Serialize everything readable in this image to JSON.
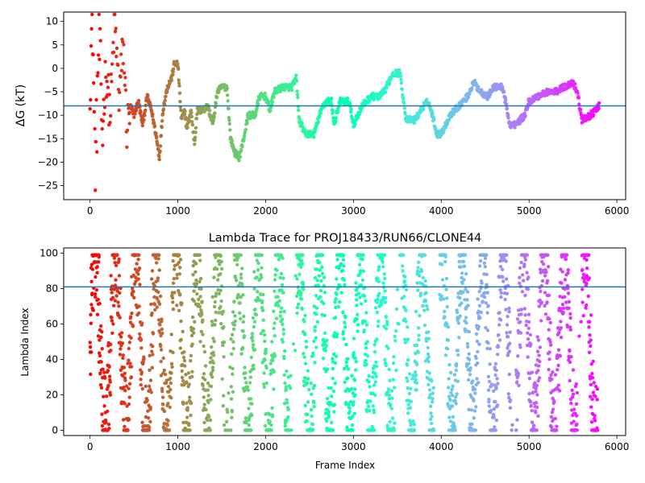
{
  "chart_data": [
    {
      "type": "scatter",
      "title": "",
      "xlabel": "",
      "ylabel": "ΔG (kT)",
      "xlim": [
        -300,
        6100
      ],
      "ylim": [
        -28,
        12
      ],
      "xticks": [
        0,
        1000,
        2000,
        3000,
        4000,
        5000,
        6000
      ],
      "xtick_labels": [
        "0",
        "1000",
        "2000",
        "3000",
        "4000",
        "5000",
        "6000"
      ],
      "yticks": [
        10,
        5,
        0,
        -5,
        -10,
        -15,
        -20,
        -25
      ],
      "ytick_labels": [
        "10",
        "5",
        "0",
        "−5",
        "−10",
        "−15",
        "−20",
        "−25"
      ],
      "hline": -8,
      "hline_color": "#1f77b4",
      "colormap": "rainbow (red → violet with increasing frame index)",
      "grid": false,
      "anchors": [
        [
          0,
          0
        ],
        [
          30,
          10
        ],
        [
          60,
          -25
        ],
        [
          100,
          8
        ],
        [
          140,
          -14
        ],
        [
          180,
          0
        ],
        [
          230,
          -10
        ],
        [
          280,
          11
        ],
        [
          330,
          -6
        ],
        [
          380,
          5
        ],
        [
          420,
          -13
        ],
        [
          460,
          -8
        ],
        [
          500,
          -10
        ],
        [
          550,
          -7
        ],
        [
          600,
          -12
        ],
        [
          650,
          -6
        ],
        [
          700,
          -9
        ],
        [
          750,
          -14
        ],
        [
          790,
          -19
        ],
        [
          830,
          -9
        ],
        [
          880,
          -4
        ],
        [
          930,
          -2
        ],
        [
          960,
          1
        ],
        [
          1000,
          1
        ],
        [
          1040,
          -11
        ],
        [
          1080,
          -9
        ],
        [
          1100,
          -13
        ],
        [
          1150,
          -9
        ],
        [
          1190,
          -16
        ],
        [
          1220,
          -9
        ],
        [
          1280,
          -9
        ],
        [
          1340,
          -8
        ],
        [
          1400,
          -12
        ],
        [
          1450,
          -5
        ],
        [
          1500,
          -4
        ],
        [
          1560,
          -4
        ],
        [
          1600,
          -15
        ],
        [
          1650,
          -18
        ],
        [
          1700,
          -19
        ],
        [
          1750,
          -15
        ],
        [
          1800,
          -10
        ],
        [
          1880,
          -10
        ],
        [
          1930,
          -6
        ],
        [
          2000,
          -6
        ],
        [
          2050,
          -9
        ],
        [
          2100,
          -5
        ],
        [
          2200,
          -4
        ],
        [
          2300,
          -4
        ],
        [
          2350,
          -2
        ],
        [
          2380,
          -11
        ],
        [
          2450,
          -14
        ],
        [
          2550,
          -14
        ],
        [
          2650,
          -8
        ],
        [
          2700,
          -7
        ],
        [
          2750,
          -7
        ],
        [
          2780,
          -12
        ],
        [
          2850,
          -7
        ],
        [
          2950,
          -7
        ],
        [
          3000,
          -12
        ],
        [
          3100,
          -8
        ],
        [
          3200,
          -6
        ],
        [
          3300,
          -6
        ],
        [
          3350,
          -5
        ],
        [
          3450,
          -1
        ],
        [
          3530,
          -1
        ],
        [
          3600,
          -11
        ],
        [
          3700,
          -11
        ],
        [
          3800,
          -8
        ],
        [
          3850,
          -7
        ],
        [
          3900,
          -10
        ],
        [
          3950,
          -14
        ],
        [
          4000,
          -14
        ],
        [
          4100,
          -10
        ],
        [
          4200,
          -8
        ],
        [
          4300,
          -6
        ],
        [
          4370,
          -3
        ],
        [
          4450,
          -5
        ],
        [
          4530,
          -6
        ],
        [
          4600,
          -4
        ],
        [
          4700,
          -4
        ],
        [
          4780,
          -12
        ],
        [
          4850,
          -12
        ],
        [
          4900,
          -11
        ],
        [
          4950,
          -10
        ],
        [
          5000,
          -7
        ],
        [
          5100,
          -6
        ],
        [
          5200,
          -5
        ],
        [
          5300,
          -5
        ],
        [
          5400,
          -4
        ],
        [
          5500,
          -3
        ],
        [
          5550,
          -5
        ],
        [
          5600,
          -11
        ],
        [
          5700,
          -10
        ],
        [
          5760,
          -9
        ],
        [
          5800,
          -8
        ]
      ]
    },
    {
      "type": "scatter",
      "title": "Lambda Trace for PROJ18433/RUN66/CLONE44",
      "xlabel": "Frame Index",
      "ylabel": "Lambda Index",
      "xlim": [
        -300,
        6100
      ],
      "ylim": [
        -3,
        103
      ],
      "xticks": [
        0,
        1000,
        2000,
        3000,
        4000,
        5000,
        6000
      ],
      "xtick_labels": [
        "0",
        "1000",
        "2000",
        "3000",
        "4000",
        "5000",
        "6000"
      ],
      "yticks": [
        0,
        20,
        40,
        60,
        80,
        100
      ],
      "ytick_labels": [
        "0",
        "20",
        "40",
        "60",
        "80",
        "100"
      ],
      "hline": 81,
      "hline_color": "#1f77b4",
      "colormap": "rainbow (red → violet with increasing frame index)",
      "grid": false,
      "lambda_range": [
        0,
        99
      ],
      "gap_regions": [
        [
          1530,
          1600
        ],
        [
          2270,
          2350
        ],
        [
          3470,
          3550
        ],
        [
          3920,
          3980
        ],
        [
          4790,
          4850
        ],
        [
          5550,
          5600
        ]
      ]
    }
  ]
}
